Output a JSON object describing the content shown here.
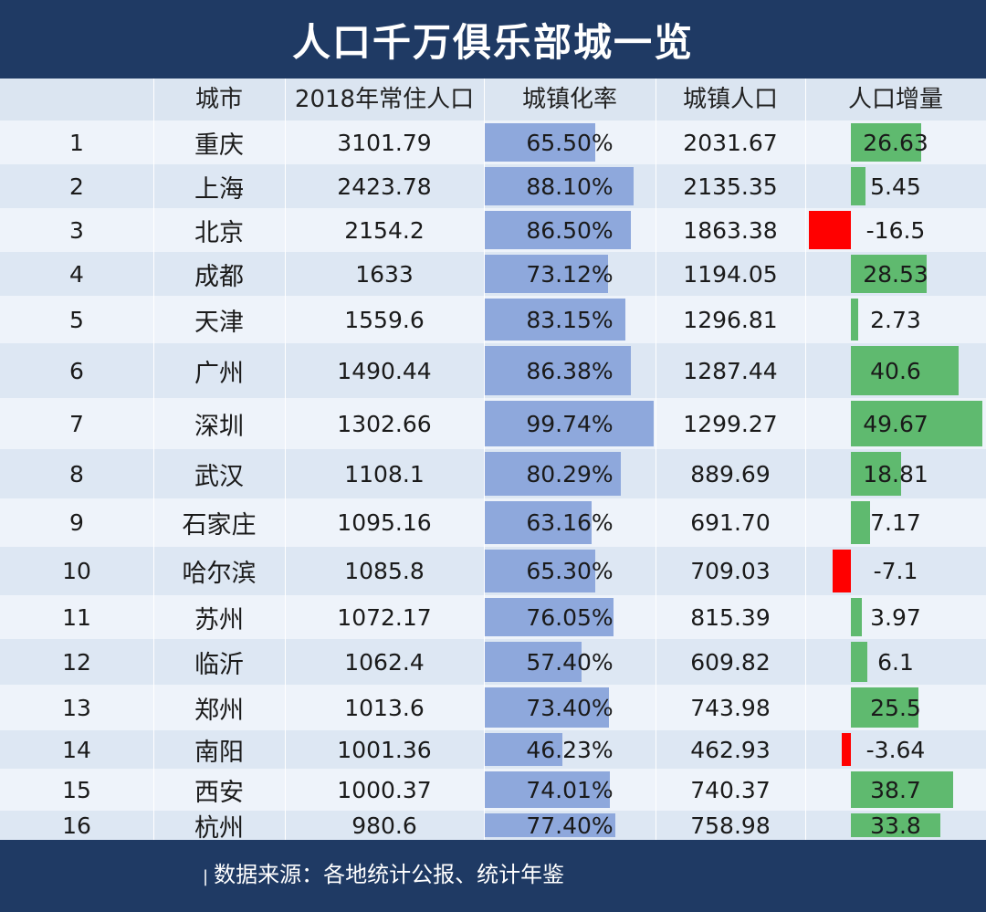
{
  "title": "人口千万俱乐部城一览",
  "colors": {
    "header_bg": "#1f3a64",
    "urban_bar": "#8ea8dc",
    "positive_bar": "#5fba6f",
    "negative_bar": "#ff0000"
  },
  "chart_data": {
    "type": "table",
    "columns": [
      "",
      "城市",
      "2018年常住人口",
      "城镇化率",
      "城镇人口",
      "人口增量"
    ],
    "rows": [
      {
        "rank": "1",
        "city": "重庆",
        "pop": "3101.79",
        "urban": "65.50%",
        "urban_val": 65.5,
        "urban_pop": "2031.67",
        "inc": "26.63",
        "inc_val": 26.63
      },
      {
        "rank": "2",
        "city": "上海",
        "pop": "2423.78",
        "urban": "88.10%",
        "urban_val": 88.1,
        "urban_pop": "2135.35",
        "inc": "5.45",
        "inc_val": 5.45
      },
      {
        "rank": "3",
        "city": "北京",
        "pop": "2154.2",
        "urban": "86.50%",
        "urban_val": 86.5,
        "urban_pop": "1863.38",
        "inc": "-16.5",
        "inc_val": -16.5
      },
      {
        "rank": "4",
        "city": "成都",
        "pop": "1633",
        "urban": "73.12%",
        "urban_val": 73.12,
        "urban_pop": "1194.05",
        "inc": "28.53",
        "inc_val": 28.53
      },
      {
        "rank": "5",
        "city": "天津",
        "pop": "1559.6",
        "urban": "83.15%",
        "urban_val": 83.15,
        "urban_pop": "1296.81",
        "inc": "2.73",
        "inc_val": 2.73
      },
      {
        "rank": "6",
        "city": "广州",
        "pop": "1490.44",
        "urban": "86.38%",
        "urban_val": 86.38,
        "urban_pop": "1287.44",
        "inc": "40.6",
        "inc_val": 40.6
      },
      {
        "rank": "7",
        "city": "深圳",
        "pop": "1302.66",
        "urban": "99.74%",
        "urban_val": 99.74,
        "urban_pop": "1299.27",
        "inc": "49.67",
        "inc_val": 49.67
      },
      {
        "rank": "8",
        "city": "武汉",
        "pop": "1108.1",
        "urban": "80.29%",
        "urban_val": 80.29,
        "urban_pop": "889.69",
        "inc": "18.81",
        "inc_val": 18.81
      },
      {
        "rank": "9",
        "city": "石家庄",
        "pop": "1095.16",
        "urban": "63.16%",
        "urban_val": 63.16,
        "urban_pop": "691.70",
        "inc": "7.17",
        "inc_val": 7.17
      },
      {
        "rank": "10",
        "city": "哈尔滨",
        "pop": "1085.8",
        "urban": "65.30%",
        "urban_val": 65.3,
        "urban_pop": "709.03",
        "inc": "-7.1",
        "inc_val": -7.1
      },
      {
        "rank": "11",
        "city": "苏州",
        "pop": "1072.17",
        "urban": "76.05%",
        "urban_val": 76.05,
        "urban_pop": "815.39",
        "inc": "3.97",
        "inc_val": 3.97
      },
      {
        "rank": "12",
        "city": "临沂",
        "pop": "1062.4",
        "urban": "57.40%",
        "urban_val": 57.4,
        "urban_pop": "609.82",
        "inc": "6.1",
        "inc_val": 6.1
      },
      {
        "rank": "13",
        "city": "郑州",
        "pop": "1013.6",
        "urban": "73.40%",
        "urban_val": 73.4,
        "urban_pop": "743.98",
        "inc": "25.5",
        "inc_val": 25.5
      },
      {
        "rank": "14",
        "city": "南阳",
        "pop": "1001.36",
        "urban": "46.23%",
        "urban_val": 46.23,
        "urban_pop": "462.93",
        "inc": "-3.64",
        "inc_val": -3.64
      },
      {
        "rank": "15",
        "city": "西安",
        "pop": "1000.37",
        "urban": "74.01%",
        "urban_val": 74.01,
        "urban_pop": "740.37",
        "inc": "38.7",
        "inc_val": 38.7
      },
      {
        "rank": "16",
        "city": "杭州",
        "pop": "980.6",
        "urban": "77.40%",
        "urban_val": 77.4,
        "urban_pop": "758.98",
        "inc": "33.8",
        "inc_val": 33.8
      }
    ]
  },
  "footer": {
    "source": "数据来源：各地统计公报、统计年鉴"
  }
}
